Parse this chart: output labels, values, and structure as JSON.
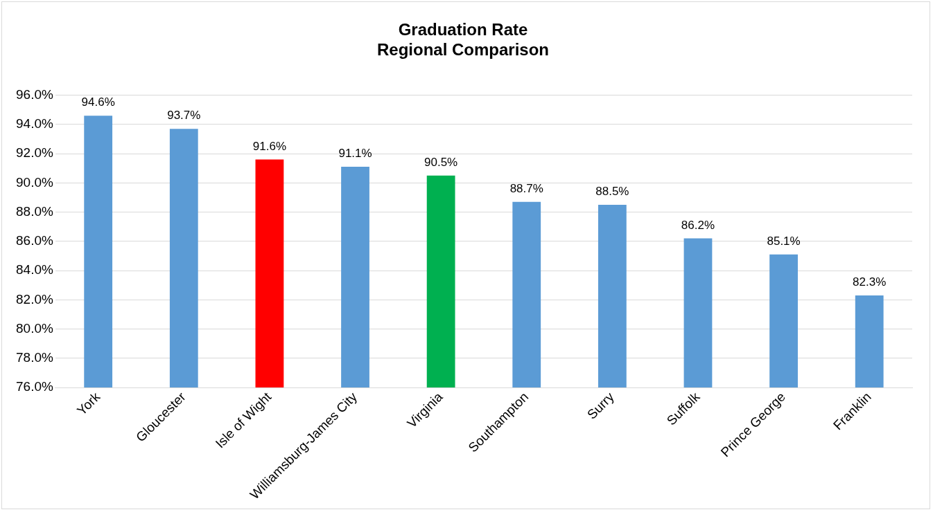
{
  "chart_data": {
    "type": "bar",
    "title": "Graduation Rate",
    "subtitle": "Regional Comparison",
    "categories": [
      "York",
      "Gloucester",
      "Isle of Wight",
      "Williamsburg-James City",
      "Virginia",
      "Southampton",
      "Surry",
      "Suffolk",
      "Prince George",
      "Franklin"
    ],
    "values": [
      94.6,
      93.7,
      91.6,
      91.1,
      90.5,
      88.7,
      88.5,
      86.2,
      85.1,
      82.3
    ],
    "colors": [
      "#5b9bd5",
      "#5b9bd5",
      "#ff0000",
      "#5b9bd5",
      "#00b050",
      "#5b9bd5",
      "#5b9bd5",
      "#5b9bd5",
      "#5b9bd5",
      "#5b9bd5"
    ],
    "value_labels": [
      "94.6%",
      "93.7%",
      "91.6%",
      "91.1%",
      "90.5%",
      "88.7%",
      "88.5%",
      "86.2%",
      "85.1%",
      "82.3%"
    ],
    "ylim": [
      76,
      96
    ],
    "yticks": [
      {
        "value": 76,
        "label": "76.0%"
      },
      {
        "value": 78,
        "label": "78.0%"
      },
      {
        "value": 80,
        "label": "80.0%"
      },
      {
        "value": 82,
        "label": "82.0%"
      },
      {
        "value": 84,
        "label": "84.0%"
      },
      {
        "value": 86,
        "label": "86.0%"
      },
      {
        "value": 88,
        "label": "88.0%"
      },
      {
        "value": 90,
        "label": "90.0%"
      },
      {
        "value": 92,
        "label": "92.0%"
      },
      {
        "value": 94,
        "label": "94.0%"
      },
      {
        "value": 96,
        "label": "96.0%"
      }
    ],
    "grid": "y",
    "legend": false
  }
}
